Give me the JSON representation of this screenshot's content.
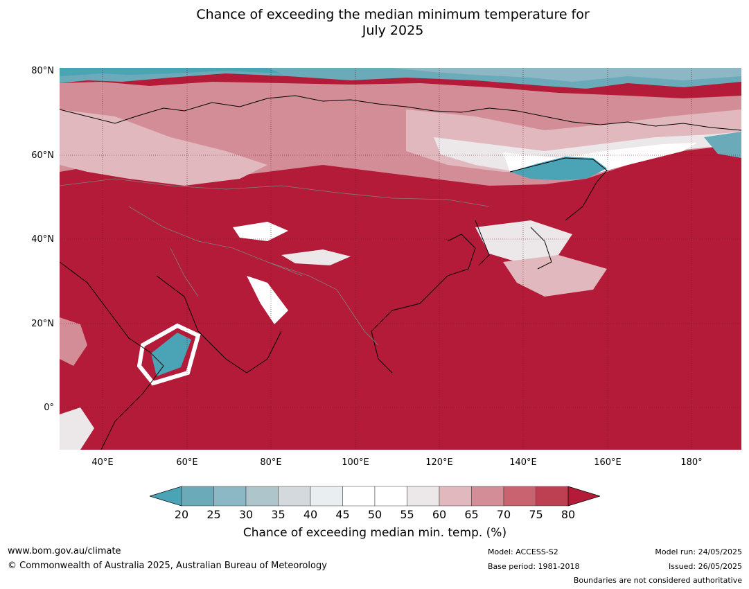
{
  "title_line1": "Chance of exceeding the median minimum temperature for",
  "title_line2": "July 2025",
  "latitude_labels": [
    "80°N",
    "60°N",
    "40°N",
    "20°N",
    "0°"
  ],
  "longitude_labels": [
    "40°E",
    "60°E",
    "80°E",
    "100°E",
    "120°E",
    "140°E",
    "160°E",
    "180°"
  ],
  "colorbar": {
    "label": "Chance of exceeding median min. temp. (%)",
    "ticks": [
      "20",
      "25",
      "30",
      "35",
      "40",
      "45",
      "50",
      "55",
      "60",
      "65",
      "70",
      "75",
      "80"
    ],
    "colors": [
      "#4ba3b6",
      "#6aaab9",
      "#8cb7c4",
      "#adc5cb",
      "#d3d9dc",
      "#e9eef0",
      "#ffffff",
      "#ffffff",
      "#ece8ea",
      "#e1b8be",
      "#d38d97",
      "#c8636f",
      "#bc4051",
      "#b31b38"
    ]
  },
  "map_colors": {
    "dominant": "#b31b38",
    "below_median": "#4ba3b6",
    "neutral": "#ffffff",
    "coastline": "#000000",
    "border": "#808080"
  },
  "footer": {
    "website": "www.bom.gov.au/climate",
    "copyright": "© Commonwealth of Australia 2025, Australian Bureau of Meteorology",
    "model": "Model: ACCESS-S2",
    "base_period": "Base period: 1981-2018",
    "model_run": "Model run: 24/05/2025",
    "issued": "Issued: 26/05/2025",
    "disclaimer": "Boundaries are not considered authoritative"
  }
}
